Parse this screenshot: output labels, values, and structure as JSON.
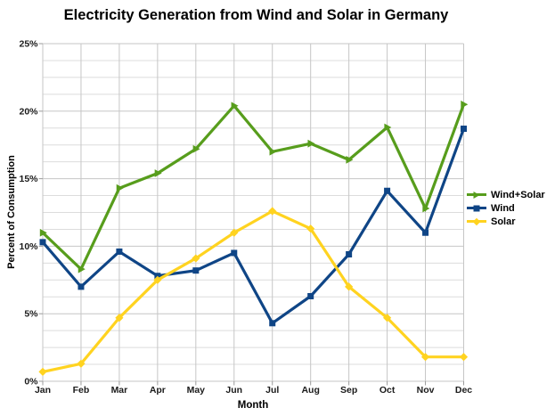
{
  "title": "Electricity Generation from Wind and Solar in Germany",
  "chart_data": {
    "type": "line",
    "title": "Electricity Generation from Wind and Solar in Germany",
    "xlabel": "Month",
    "ylabel": "Percent of Consumption",
    "categories": [
      "Jan",
      "Feb",
      "Mar",
      "Apr",
      "May",
      "Jun",
      "Jul",
      "Aug",
      "Sep",
      "Oct",
      "Nov",
      "Dec"
    ],
    "y_ticks": [
      "0%",
      "5%",
      "10%",
      "15%",
      "20%",
      "25%"
    ],
    "ylim": [
      0,
      25
    ],
    "y_major_step": 5,
    "y_minor_step": 1.25,
    "grid": true,
    "legend_position": "right",
    "series": [
      {
        "name": "Wind+Solar",
        "color": "#579D1C",
        "marker": "triangle",
        "values": [
          11.0,
          8.3,
          14.3,
          15.4,
          17.2,
          20.4,
          17.0,
          17.6,
          16.4,
          18.8,
          12.8,
          20.5
        ]
      },
      {
        "name": "Wind",
        "color": "#0F4586",
        "marker": "square",
        "values": [
          10.3,
          7.0,
          9.6,
          7.8,
          8.2,
          9.5,
          4.3,
          6.3,
          9.4,
          14.1,
          11.0,
          18.7
        ]
      },
      {
        "name": "Solar",
        "color": "#FFD320",
        "marker": "diamond",
        "values": [
          0.7,
          1.3,
          4.7,
          7.5,
          9.1,
          11.0,
          12.6,
          11.3,
          7.0,
          4.7,
          1.8,
          1.8
        ]
      }
    ],
    "colors": {
      "grid_minor": "#dcdcdc",
      "grid_major": "#c6c6c6",
      "axis": "#9b9b9b",
      "tick_label": "#1a1a1a"
    }
  }
}
